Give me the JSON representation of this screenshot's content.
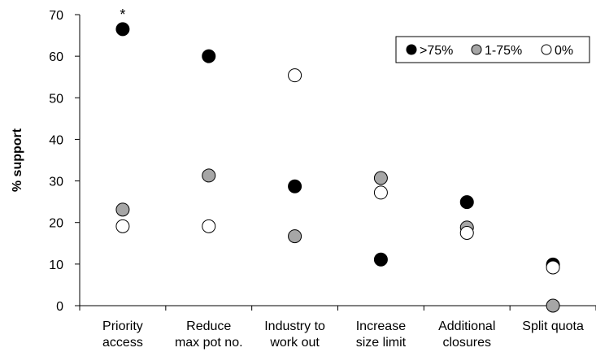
{
  "chart_data": {
    "type": "scatter",
    "title": "",
    "xlabel": "",
    "ylabel": "% support",
    "ylim": [
      0,
      70
    ],
    "yticks": [
      0,
      10,
      20,
      30,
      40,
      50,
      60,
      70
    ],
    "categories": [
      [
        "Priority",
        "access"
      ],
      [
        "Reduce",
        "max pot no."
      ],
      [
        "Industry to",
        "work out"
      ],
      [
        "Increase",
        "size limit"
      ],
      [
        "Additional",
        "closures"
      ],
      [
        "Split quota"
      ]
    ],
    "series": [
      {
        "name": ">75%",
        "fill": "#000000",
        "values": [
          66.5,
          60,
          28.7,
          11.1,
          24.9,
          9.9
        ]
      },
      {
        "name": "1-75%",
        "fill": "#a6a6a6",
        "values": [
          23.1,
          31.3,
          16.7,
          30.7,
          18.8,
          0
        ]
      },
      {
        "name": "0%",
        "fill": "#ffffff",
        "values": [
          19.1,
          19.1,
          55.4,
          27.2,
          17.5,
          9.2
        ]
      }
    ],
    "legend": "top-right",
    "grid": false,
    "annotations": [
      {
        "text": "*",
        "category_index": 0
      }
    ]
  }
}
